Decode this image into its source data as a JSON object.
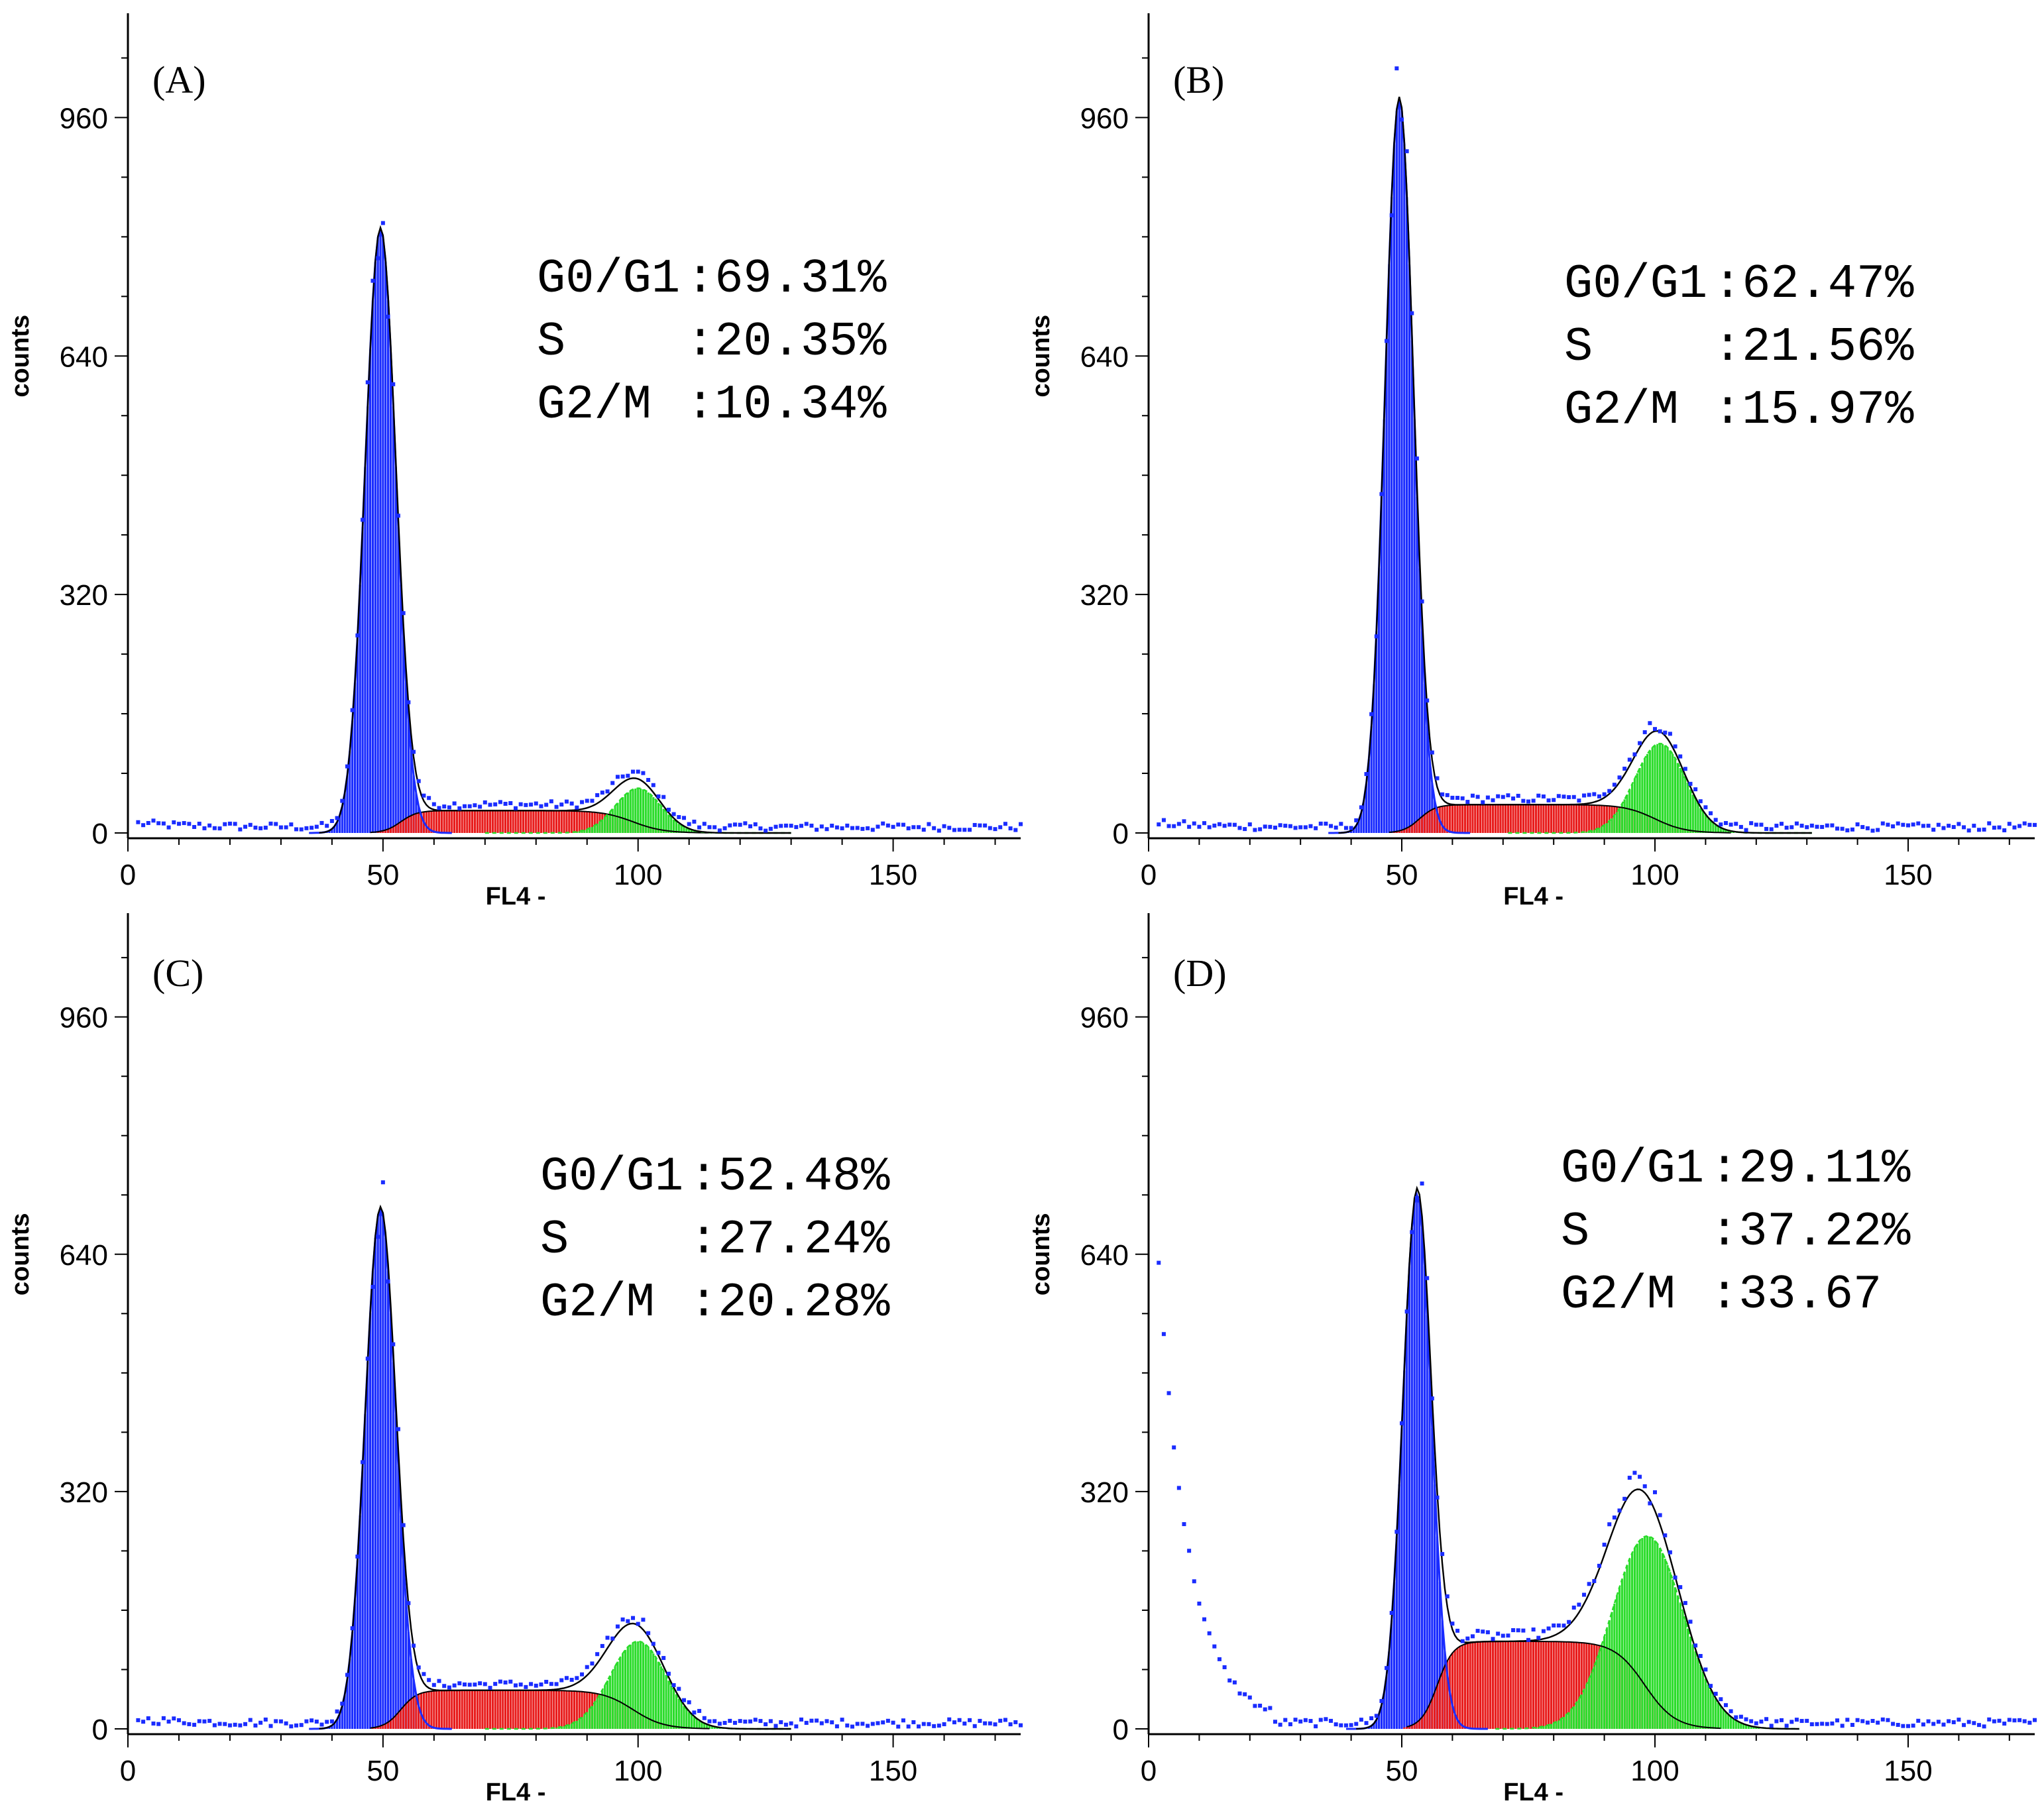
{
  "chart_data": [
    {
      "type": "histogram",
      "panel": "(A)",
      "xlabel": "FL4 -",
      "ylabel": "counts",
      "xlim": [
        0,
        175
      ],
      "ylim": [
        0,
        1100
      ],
      "xticks": [
        0,
        50,
        100,
        150
      ],
      "yticks": [
        0,
        320,
        640,
        960
      ],
      "phases": {
        "g0g1": {
          "label": "G0/G1",
          "value": ":69.31%",
          "mean": 49.5,
          "sd": 3.0,
          "peak": 810,
          "color": "#1a2cff"
        },
        "s": {
          "label": "S",
          "value": ":20.35%",
          "start": 49.5,
          "end": 99,
          "level": 30,
          "color": "#e81c1c"
        },
        "g2m": {
          "label": "G2/M",
          "value": ":10.34%",
          "mean": 100,
          "sd": 4.5,
          "peak": 60,
          "color": "#2bdc2b"
        }
      }
    },
    {
      "type": "histogram",
      "panel": "(B)",
      "xlabel": "FL4 -",
      "ylabel": "counts",
      "xlim": [
        0,
        175
      ],
      "ylim": [
        0,
        1100
      ],
      "xticks": [
        0,
        50,
        100,
        150
      ],
      "yticks": [
        0,
        320,
        640,
        960
      ],
      "phases": {
        "g0g1": {
          "label": "G0/G1",
          "value": ":62.47%",
          "mean": 49.5,
          "sd": 2.8,
          "peak": 985,
          "color": "#1a2cff"
        },
        "s": {
          "label": "S",
          "value": ":21.56%",
          "start": 49.5,
          "end": 100,
          "level": 38,
          "color": "#e81c1c"
        },
        "g2m": {
          "label": "G2/M",
          "value": ":15.97%",
          "mean": 101,
          "sd": 5.0,
          "peak": 120,
          "color": "#2bdc2b"
        }
      }
    },
    {
      "type": "histogram",
      "panel": "(C)",
      "xlabel": "FL4 -",
      "ylabel": "counts",
      "xlim": [
        0,
        175
      ],
      "ylim": [
        0,
        1100
      ],
      "xticks": [
        0,
        50,
        100,
        150
      ],
      "yticks": [
        0,
        320,
        640,
        960
      ],
      "phases": {
        "g0g1": {
          "label": "G0/G1",
          "value": ":52.48%",
          "mean": 49.5,
          "sd": 3.0,
          "peak": 700,
          "color": "#1a2cff"
        },
        "s": {
          "label": "S",
          "value": ":27.24%",
          "start": 49.5,
          "end": 99,
          "level": 52,
          "color": "#e81c1c"
        },
        "g2m": {
          "label": "G2/M",
          "value": ":20.28%",
          "mean": 100,
          "sd": 5.5,
          "peak": 118,
          "color": "#2bdc2b"
        }
      }
    },
    {
      "type": "histogram",
      "panel": "(D)",
      "xlabel": "FL4 -",
      "ylabel": "counts",
      "xlim": [
        0,
        175
      ],
      "ylim": [
        0,
        1100
      ],
      "xticks": [
        0,
        50,
        100,
        150
      ],
      "yticks": [
        0,
        320,
        640,
        960
      ],
      "phases": {
        "g0g1": {
          "label": "G0/G1",
          "value": ":29.11%",
          "mean": 53,
          "sd": 2.8,
          "peak": 720,
          "color": "#1a2cff"
        },
        "s": {
          "label": "S",
          "value": ":37.22%",
          "start": 53,
          "end": 98,
          "level": 118,
          "color": "#e81c1c"
        },
        "g2m": {
          "label": "G2/M",
          "value": ":33.67",
          "mean": 98.5,
          "sd": 7.0,
          "peak": 260,
          "color": "#2bdc2b"
        }
      }
    }
  ]
}
